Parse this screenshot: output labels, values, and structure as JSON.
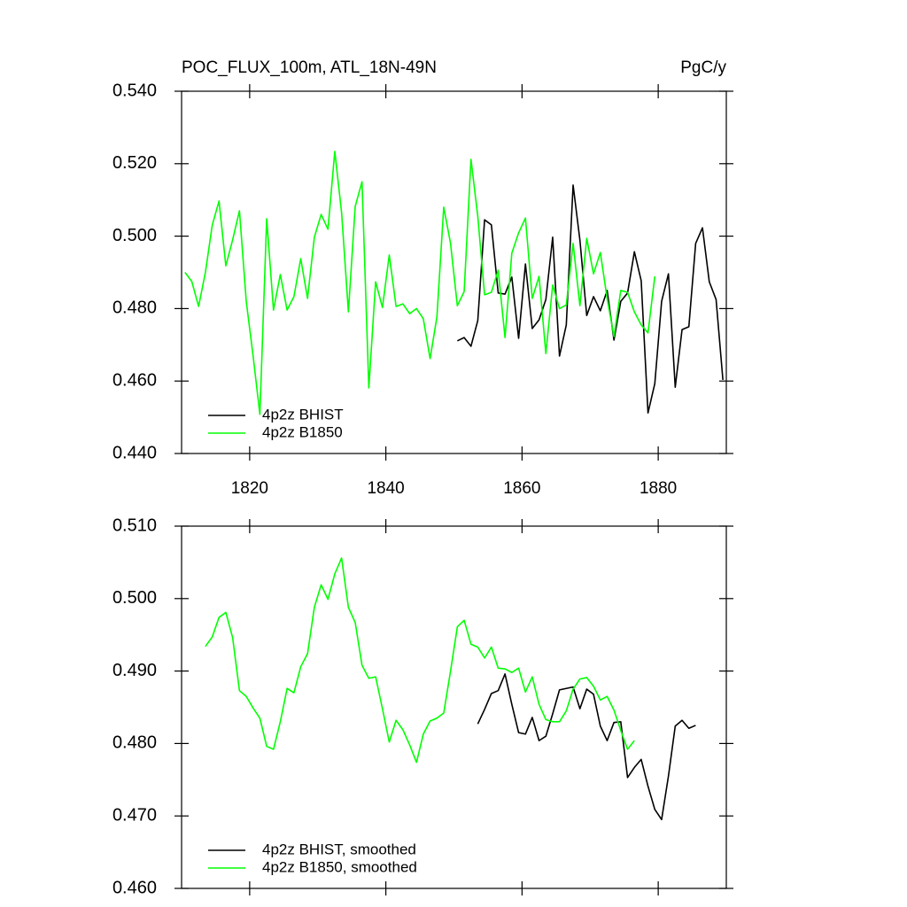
{
  "chart_data": [
    {
      "type": "line",
      "title": "POC_FLUX_100m, ATL_18N-49N",
      "units": "PgC/y",
      "xlim": [
        1810,
        1890
      ],
      "xticks": [
        1820,
        1840,
        1860,
        1880
      ],
      "ylim": [
        0.44,
        0.54
      ],
      "yticks": [
        {
          "value": 0.44,
          "label": "0.440"
        },
        {
          "value": 0.46,
          "label": "0.460"
        },
        {
          "value": 0.48,
          "label": "0.480"
        },
        {
          "value": 0.5,
          "label": "0.500"
        },
        {
          "value": 0.52,
          "label": "0.520"
        },
        {
          "value": 0.54,
          "label": "0.540"
        }
      ],
      "legend": "lower left",
      "series": [
        {
          "name": "4p2z BHIST",
          "color": "#000000",
          "x": [
            1850.5,
            1851.5,
            1852.5,
            1853.5,
            1854.5,
            1855.5,
            1856.5,
            1857.5,
            1858.5,
            1859.5,
            1860.5,
            1861.5,
            1862.5,
            1863.5,
            1864.5,
            1865.5,
            1866.5,
            1867.5,
            1868.5,
            1869.5,
            1870.5,
            1871.5,
            1872.5,
            1873.5,
            1874.5,
            1875.5,
            1876.5,
            1877.5,
            1878.5,
            1879.5,
            1880.5,
            1881.5,
            1882.5,
            1883.5,
            1884.5,
            1885.5,
            1886.5,
            1887.5,
            1888.5,
            1889.5
          ],
          "values": [
            0.4711,
            0.472,
            0.4696,
            0.4767,
            0.5045,
            0.5031,
            0.4843,
            0.484,
            0.4887,
            0.4718,
            0.4923,
            0.4745,
            0.4769,
            0.4825,
            0.4997,
            0.4669,
            0.4755,
            0.5141,
            0.4989,
            0.4781,
            0.4833,
            0.4794,
            0.485,
            0.4713,
            0.482,
            0.4843,
            0.4957,
            0.4877,
            0.4512,
            0.4593,
            0.482,
            0.4896,
            0.4583,
            0.4742,
            0.475,
            0.498,
            0.5023,
            0.4874,
            0.4825,
            0.4603
          ]
        },
        {
          "name": "4p2z B1850",
          "color": "#00ff00",
          "x": [
            1810.5,
            1811.5,
            1812.5,
            1813.5,
            1814.5,
            1815.5,
            1816.5,
            1817.5,
            1818.5,
            1819.5,
            1820.5,
            1821.5,
            1822.5,
            1823.5,
            1824.5,
            1825.5,
            1826.5,
            1827.5,
            1828.5,
            1829.5,
            1830.5,
            1831.5,
            1832.5,
            1833.5,
            1834.5,
            1835.5,
            1836.5,
            1837.5,
            1838.5,
            1839.5,
            1840.5,
            1841.5,
            1842.5,
            1843.5,
            1844.5,
            1845.5,
            1846.5,
            1847.5,
            1848.5,
            1849.5,
            1850.5,
            1851.5,
            1852.5,
            1853.5,
            1854.5,
            1855.5,
            1856.5,
            1857.5,
            1858.5,
            1859.5,
            1860.5,
            1861.5,
            1862.5,
            1863.5,
            1864.5,
            1865.5,
            1866.5,
            1867.5,
            1868.5,
            1869.5,
            1870.5,
            1871.5,
            1872.5,
            1873.5,
            1874.5,
            1875.5,
            1876.5,
            1877.5,
            1878.5,
            1879.5
          ],
          "values": [
            0.49,
            0.4875,
            0.4806,
            0.49,
            0.503,
            0.5097,
            0.4918,
            0.499,
            0.507,
            0.482,
            0.467,
            0.4508,
            0.5048,
            0.4796,
            0.4894,
            0.4796,
            0.4833,
            0.4938,
            0.4828,
            0.4997,
            0.506,
            0.5019,
            0.5234,
            0.5065,
            0.4791,
            0.5082,
            0.515,
            0.4581,
            0.4874,
            0.4803,
            0.4948,
            0.4806,
            0.4813,
            0.4786,
            0.48,
            0.4772,
            0.4662,
            0.4777,
            0.508,
            0.498,
            0.4808,
            0.4847,
            0.5212,
            0.5055,
            0.4838,
            0.4845,
            0.4906,
            0.472,
            0.4953,
            0.5009,
            0.505,
            0.4828,
            0.4889,
            0.4676,
            0.4865,
            0.48,
            0.481,
            0.498,
            0.4808,
            0.4994,
            0.4896,
            0.4955,
            0.4828,
            0.4723,
            0.485,
            0.4845,
            0.4791,
            0.4755,
            0.4733,
            0.4889
          ]
        }
      ]
    },
    {
      "type": "line",
      "xlim": [
        1810,
        1890
      ],
      "xticks": [
        1820,
        1840,
        1860,
        1880
      ],
      "ylim": [
        0.46,
        0.51
      ],
      "yticks": [
        {
          "value": 0.46,
          "label": "0.460"
        },
        {
          "value": 0.47,
          "label": "0.470"
        },
        {
          "value": 0.48,
          "label": "0.480"
        },
        {
          "value": 0.49,
          "label": "0.490"
        },
        {
          "value": 0.5,
          "label": "0.500"
        },
        {
          "value": 0.51,
          "label": "0.510"
        }
      ],
      "legend": "lower left",
      "series": [
        {
          "name": "4p2z BHIST, smoothed",
          "color": "#000000",
          "x": [
            1853.5,
            1854.5,
            1855.5,
            1856.5,
            1857.5,
            1858.5,
            1859.5,
            1860.5,
            1861.5,
            1862.5,
            1863.5,
            1864.5,
            1865.5,
            1866.5,
            1867.5,
            1868.5,
            1869.5,
            1870.5,
            1871.5,
            1872.5,
            1873.5,
            1874.5,
            1875.5,
            1876.5,
            1877.5,
            1878.5,
            1879.5,
            1880.5,
            1881.5,
            1882.5,
            1883.5,
            1884.5,
            1885.5
          ],
          "values": [
            0.4827,
            0.4847,
            0.4869,
            0.4873,
            0.4896,
            0.4854,
            0.4815,
            0.4813,
            0.4836,
            0.4804,
            0.481,
            0.4841,
            0.4874,
            0.4876,
            0.4878,
            0.4848,
            0.4875,
            0.4868,
            0.4824,
            0.4804,
            0.4829,
            0.483,
            0.4753,
            0.4767,
            0.4778,
            0.4741,
            0.4709,
            0.4695,
            0.4755,
            0.4824,
            0.4832,
            0.4821,
            0.4825
          ]
        },
        {
          "name": "4p2z B1850, smoothed",
          "color": "#00ff00",
          "x": [
            1813.5,
            1814.5,
            1815.5,
            1816.5,
            1817.5,
            1818.5,
            1819.5,
            1820.5,
            1821.5,
            1822.5,
            1823.5,
            1824.5,
            1825.5,
            1826.5,
            1827.5,
            1828.5,
            1829.5,
            1830.5,
            1831.5,
            1832.5,
            1833.5,
            1834.5,
            1835.5,
            1836.5,
            1837.5,
            1838.5,
            1839.5,
            1840.5,
            1841.5,
            1842.5,
            1843.5,
            1844.5,
            1845.5,
            1846.5,
            1847.5,
            1848.5,
            1849.5,
            1850.5,
            1851.5,
            1852.5,
            1853.5,
            1854.5,
            1855.5,
            1856.5,
            1857.5,
            1858.5,
            1859.5,
            1860.5,
            1861.5,
            1862.5,
            1863.5,
            1864.5,
            1865.5,
            1866.5,
            1867.5,
            1868.5,
            1869.5,
            1870.5,
            1871.5,
            1872.5,
            1873.5,
            1874.5,
            1875.5,
            1876.5
          ],
          "values": [
            0.4934,
            0.4947,
            0.4974,
            0.4981,
            0.4946,
            0.4873,
            0.4865,
            0.4849,
            0.4835,
            0.4796,
            0.4792,
            0.483,
            0.4876,
            0.487,
            0.4906,
            0.4924,
            0.4988,
            0.5019,
            0.4999,
            0.5034,
            0.5056,
            0.4988,
            0.4967,
            0.4908,
            0.489,
            0.4892,
            0.4848,
            0.4802,
            0.4832,
            0.4819,
            0.4798,
            0.4774,
            0.4813,
            0.4831,
            0.4835,
            0.4842,
            0.49,
            0.4961,
            0.497,
            0.4937,
            0.4933,
            0.4918,
            0.4933,
            0.4904,
            0.4903,
            0.4898,
            0.4904,
            0.4871,
            0.4892,
            0.4854,
            0.4833,
            0.483,
            0.483,
            0.4845,
            0.4875,
            0.4889,
            0.4891,
            0.4879,
            0.486,
            0.4865,
            0.4846,
            0.4818,
            0.4792,
            0.4804
          ]
        }
      ]
    }
  ]
}
